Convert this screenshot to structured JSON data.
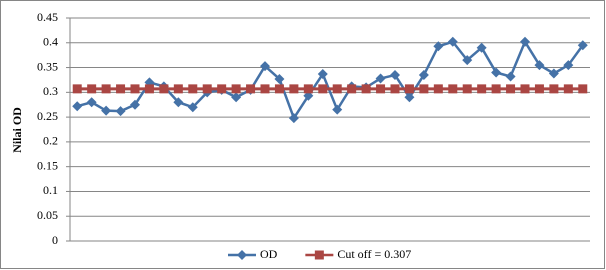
{
  "chart_data": {
    "type": "line",
    "y_label": "Nilai OD",
    "categories": [
      null,
      null,
      null,
      null,
      null,
      null,
      null,
      null,
      null,
      null,
      null,
      null,
      null,
      null,
      null,
      null,
      null,
      null,
      null,
      null,
      null,
      null,
      null,
      null,
      null,
      null,
      null,
      null,
      null,
      null,
      null,
      null,
      null,
      null,
      null,
      null
    ],
    "series": [
      {
        "name": "OD",
        "color": "#4572a7",
        "marker": "diamond",
        "values": [
          0.272,
          0.28,
          0.263,
          0.262,
          0.275,
          0.32,
          0.312,
          0.28,
          0.27,
          0.3,
          0.305,
          0.29,
          0.305,
          0.353,
          0.327,
          0.248,
          0.293,
          0.337,
          0.265,
          0.312,
          0.31,
          0.328,
          0.335,
          0.29,
          0.335,
          0.393,
          0.402,
          0.365,
          0.39,
          0.34,
          0.332,
          0.402,
          0.355,
          0.338,
          0.355,
          0.395
        ]
      },
      {
        "name": "Cut off = 0.307",
        "color": "#aa4643",
        "marker": "square",
        "values": [
          0.307,
          0.307,
          0.307,
          0.307,
          0.307,
          0.307,
          0.307,
          0.307,
          0.307,
          0.307,
          0.307,
          0.307,
          0.307,
          0.307,
          0.307,
          0.307,
          0.307,
          0.307,
          0.307,
          0.307,
          0.307,
          0.307,
          0.307,
          0.307,
          0.307,
          0.307,
          0.307,
          0.307,
          0.307,
          0.307,
          0.307,
          0.307,
          0.307,
          0.307,
          0.307,
          0.307
        ]
      }
    ],
    "ylim": [
      0,
      0.45
    ],
    "yticks": [
      0,
      0.05,
      0.1,
      0.15,
      0.2,
      0.25,
      0.3,
      0.35,
      0.4,
      0.45
    ],
    "grid": true,
    "legend": "bottom"
  }
}
